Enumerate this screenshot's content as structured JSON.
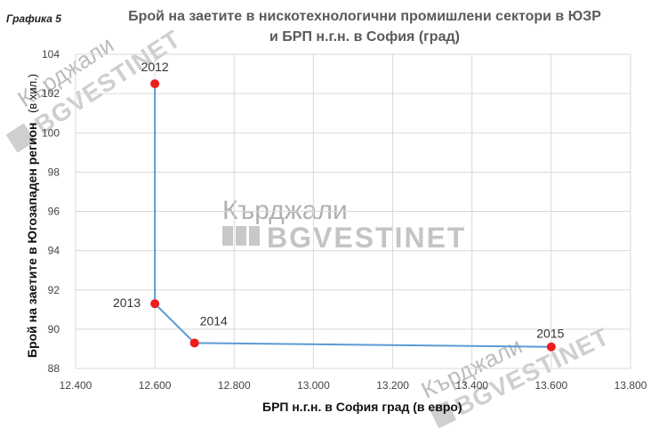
{
  "figure_label": "Графика 5",
  "title_line1": "Брой на заетите в нискотехнологични промишлени сектори в ЮЗР",
  "title_line2": "и БРП н.г.н. в София (град)",
  "watermark": {
    "top": "Кърджали",
    "bottom": "BGVESTINET"
  },
  "chart_data": {
    "type": "scatter",
    "title": "Брой на заетите в нискотехнологични промишлени сектори в ЮЗР и БРП н.г.н. в София (град)",
    "xlabel": "БРП н.г.н. в София град (в евро)",
    "ylabel_main": "Брой на заетите в Югозападен регион",
    "ylabel_unit": "(в хил.)",
    "xlim": [
      12400,
      13800
    ],
    "ylim": [
      88,
      104
    ],
    "x_ticks": [
      12400,
      12600,
      12800,
      13000,
      13200,
      13400,
      13600,
      13800
    ],
    "x_tick_labels": [
      "12.400",
      "12.600",
      "12.800",
      "13.000",
      "13.200",
      "13.400",
      "13.600",
      "13.800"
    ],
    "y_ticks": [
      88,
      90,
      92,
      94,
      96,
      98,
      100,
      102,
      104
    ],
    "y_tick_labels": [
      "88",
      "90",
      "92",
      "94",
      "96",
      "98",
      "100",
      "102",
      "104"
    ],
    "grid": true,
    "line_color": "#5b9bd5",
    "marker_color": "#ee1c1c",
    "points": [
      {
        "label": "2012",
        "x": 12600,
        "y": 102.5
      },
      {
        "label": "2013",
        "x": 12600,
        "y": 91.3
      },
      {
        "label": "2014",
        "x": 12700,
        "y": 89.3
      },
      {
        "label": "2015",
        "x": 13600,
        "y": 89.1
      }
    ]
  }
}
